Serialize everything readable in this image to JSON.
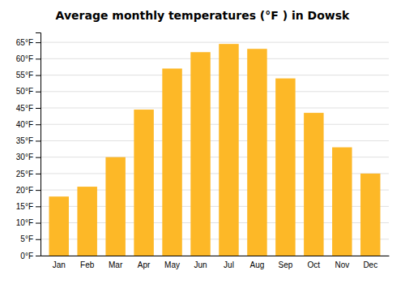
{
  "chart_data": {
    "type": "bar",
    "title": "Average monthly temperatures (°F ) in Dowsk",
    "categories": [
      "Jan",
      "Feb",
      "Mar",
      "Apr",
      "May",
      "Jun",
      "Jul",
      "Aug",
      "Sep",
      "Oct",
      "Nov",
      "Dec"
    ],
    "values": [
      18,
      21,
      30,
      44.5,
      57,
      62,
      64.5,
      63,
      54,
      43.5,
      33,
      25
    ],
    "color": "#FDB827",
    "ylim": [
      0,
      68
    ],
    "yticks": [
      {
        "value": 0,
        "label": "0°F"
      },
      {
        "value": 5,
        "label": "5°F"
      },
      {
        "value": 10,
        "label": "10°F"
      },
      {
        "value": 15,
        "label": "15°F"
      },
      {
        "value": 20,
        "label": "20°F"
      },
      {
        "value": 25,
        "label": "25°F"
      },
      {
        "value": 30,
        "label": "30°F"
      },
      {
        "value": 35,
        "label": "35°F"
      },
      {
        "value": 40,
        "label": "40°F"
      },
      {
        "value": 45,
        "label": "45°F"
      },
      {
        "value": 50,
        "label": "50°F"
      },
      {
        "value": 55,
        "label": "55°F"
      },
      {
        "value": 60,
        "label": "60°F"
      },
      {
        "value": 65,
        "label": "65°F"
      }
    ],
    "grid": true
  }
}
